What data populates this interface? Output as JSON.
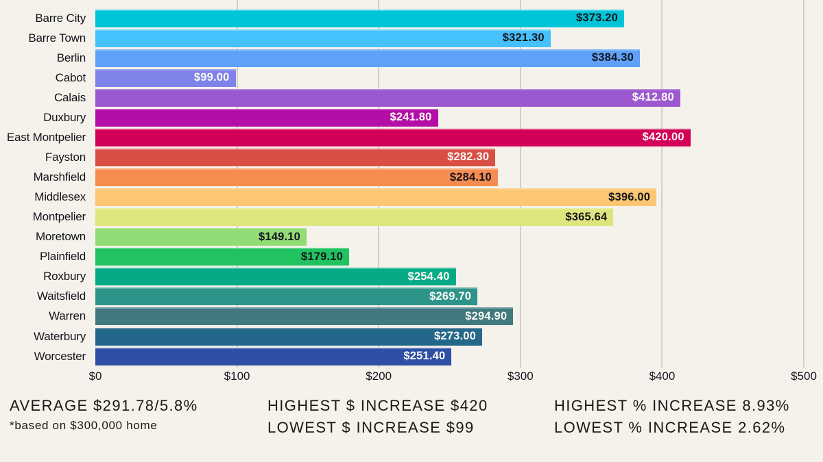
{
  "chart_data": {
    "type": "bar",
    "orientation": "horizontal",
    "categories": [
      "Barre City",
      "Barre Town",
      "Berlin",
      "Cabot",
      "Calais",
      "Duxbury",
      "East Montpelier",
      "Fayston",
      "Marshfield",
      "Middlesex",
      "Montpelier",
      "Moretown",
      "Plainfield",
      "Roxbury",
      "Waitsfield",
      "Warren",
      "Waterbury",
      "Worcester"
    ],
    "values": [
      373.2,
      321.3,
      384.3,
      99.0,
      412.8,
      241.8,
      420.0,
      282.3,
      284.1,
      396.0,
      365.64,
      149.1,
      179.1,
      254.4,
      269.7,
      294.9,
      273.0,
      251.4
    ],
    "value_labels": [
      "$373.20",
      "$321.30",
      "$384.30",
      "$99.00",
      "$412.80",
      "$241.80",
      "$420.00",
      "$282.30",
      "$284.10",
      "$396.00",
      "$365.64",
      "$149.10",
      "$179.10",
      "$254.40",
      "$269.70",
      "$294.90",
      "$273.00",
      "$251.40"
    ],
    "bar_colors": [
      "#00c4d8",
      "#45c1fb",
      "#5fa1f8",
      "#7f82e8",
      "#9c59cf",
      "#b30fa7",
      "#d20057",
      "#da4f45",
      "#f58c50",
      "#fcc672",
      "#dfe57d",
      "#92dc75",
      "#21c260",
      "#06ab86",
      "#2d9489",
      "#41797f",
      "#23678a",
      "#2e4fa5"
    ],
    "value_label_contrast": [
      "dark",
      "dark",
      "dark",
      "light",
      "light",
      "light",
      "light",
      "light",
      "dark",
      "dark",
      "dark",
      "dark",
      "dark",
      "light",
      "light",
      "light",
      "light",
      "light"
    ],
    "value_text_colors": {
      "dark": "#15151e",
      "light": "#fbf9f5"
    },
    "x_ticks": [
      "$0",
      "$100",
      "$200",
      "$300",
      "$400",
      "$500"
    ],
    "x_tick_values": [
      0,
      100,
      200,
      300,
      400,
      500
    ],
    "xlim": [
      0,
      500
    ],
    "grid": true,
    "gridline_color": "#d2cfc9",
    "background": "#f5f2ec"
  },
  "footer": {
    "average_line": "AVERAGE $291.78/5.8%",
    "average_note": "*based on $300,000 home",
    "highest_dollar": "HIGHEST $ INCREASE $420",
    "lowest_dollar": "LOWEST $ INCREASE $99",
    "highest_percent": "HIGHEST % INCREASE 8.93%",
    "lowest_percent": "LOWEST % INCREASE 2.62%"
  }
}
